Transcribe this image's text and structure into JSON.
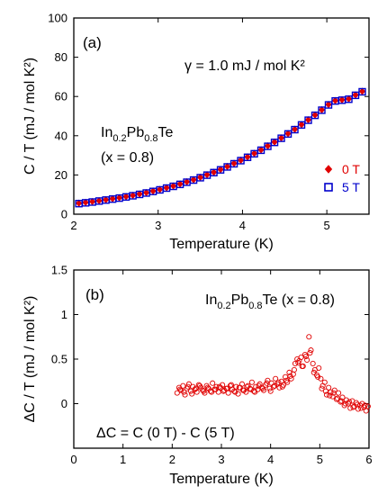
{
  "chart_data": [
    {
      "panel": "(a)",
      "type": "scatter",
      "xlabel": "Temperature (K)",
      "ylabel": "C / T (mJ / mol K²)",
      "xlim": [
        2,
        5.5
      ],
      "ylim": [
        0,
        100
      ],
      "xticks": [
        2,
        3,
        4,
        5
      ],
      "yticks": [
        0,
        20,
        40,
        60,
        80,
        100
      ],
      "annotations": {
        "gamma": "γ = 1.0 mJ / mol K²",
        "compound": [
          "In",
          "0.2",
          "Pb",
          "0.8",
          "Te"
        ],
        "x_value": "(x = 0.8)"
      },
      "legend_position": "right",
      "series": [
        {
          "name": "0 T",
          "marker": "diamond",
          "color": "#e00000",
          "x": [
            2.06,
            2.14,
            2.22,
            2.3,
            2.38,
            2.46,
            2.54,
            2.62,
            2.7,
            2.78,
            2.86,
            2.94,
            3.02,
            3.1,
            3.18,
            3.26,
            3.34,
            3.42,
            3.5,
            3.58,
            3.66,
            3.74,
            3.82,
            3.9,
            3.98,
            4.06,
            4.14,
            4.22,
            4.3,
            4.38,
            4.46,
            4.54,
            4.62,
            4.7,
            4.78,
            4.86,
            4.94,
            5.02,
            5.1,
            5.18,
            5.26,
            5.34,
            5.42
          ],
          "y": [
            5.6,
            6.0,
            6.4,
            6.9,
            7.4,
            7.9,
            8.4,
            9.0,
            9.6,
            10.3,
            11.0,
            11.8,
            12.6,
            13.5,
            14.4,
            15.4,
            16.5,
            17.6,
            18.8,
            20.1,
            21.4,
            22.8,
            24.3,
            25.9,
            27.5,
            29.2,
            31.0,
            32.8,
            34.8,
            36.8,
            38.9,
            41.1,
            43.3,
            45.7,
            48.1,
            50.6,
            53.2,
            55.9,
            57.9,
            58.3,
            58.8,
            60.8,
            62.6
          ]
        },
        {
          "name": "5 T",
          "marker": "open-square",
          "color": "#0000cc",
          "x": [
            2.06,
            2.14,
            2.22,
            2.3,
            2.38,
            2.46,
            2.54,
            2.62,
            2.7,
            2.78,
            2.86,
            2.94,
            3.02,
            3.1,
            3.18,
            3.26,
            3.34,
            3.42,
            3.5,
            3.58,
            3.66,
            3.74,
            3.82,
            3.9,
            3.98,
            4.06,
            4.14,
            4.22,
            4.3,
            4.38,
            4.46,
            4.54,
            4.62,
            4.7,
            4.78,
            4.86,
            4.94,
            5.02,
            5.1,
            5.18,
            5.26,
            5.34,
            5.42
          ],
          "y": [
            5.4,
            5.8,
            6.2,
            6.7,
            7.2,
            7.7,
            8.2,
            8.8,
            9.4,
            10.1,
            10.8,
            11.6,
            12.4,
            13.3,
            14.2,
            15.2,
            16.3,
            17.4,
            18.6,
            19.9,
            21.2,
            22.6,
            24.1,
            25.7,
            27.3,
            29.0,
            30.8,
            32.6,
            34.6,
            36.6,
            38.7,
            40.9,
            43.1,
            45.5,
            47.9,
            50.4,
            53.0,
            55.7,
            57.7,
            58.1,
            58.6,
            60.6,
            62.4
          ]
        }
      ]
    },
    {
      "panel": "(b)",
      "type": "scatter",
      "xlabel": "Temperature (K)",
      "ylabel": "ΔC / T (mJ / mol K²)",
      "xlim": [
        0,
        6
      ],
      "ylim": [
        -0.5,
        1.5
      ],
      "xticks": [
        0,
        1,
        2,
        3,
        4,
        5,
        6
      ],
      "yticks": [
        0,
        0.5,
        1,
        1.5
      ],
      "ytick_labels": [
        "0",
        "0.5",
        "1",
        "1.5"
      ],
      "annotations": {
        "compound": [
          "In",
          "0.2",
          "Pb",
          "0.8",
          "Te (x = 0.8)"
        ],
        "formula": "ΔC = C (0 T) - C (5 T)"
      },
      "series": [
        {
          "marker": "open-circle",
          "color": "#e00000",
          "x": [
            2.1,
            2.14,
            2.18,
            2.22,
            2.26,
            2.3,
            2.34,
            2.38,
            2.42,
            2.46,
            2.5,
            2.54,
            2.58,
            2.62,
            2.66,
            2.7,
            2.74,
            2.78,
            2.82,
            2.86,
            2.9,
            2.94,
            2.98,
            3.02,
            3.06,
            3.1,
            3.14,
            3.18,
            3.22,
            3.26,
            3.3,
            3.34,
            3.38,
            3.42,
            3.46,
            3.5,
            3.54,
            3.58,
            3.62,
            3.66,
            3.7,
            3.74,
            3.78,
            3.82,
            3.86,
            3.9,
            3.94,
            3.98,
            4.02,
            4.06,
            4.1,
            4.14,
            4.18,
            4.22,
            4.26,
            4.3,
            4.34,
            4.38,
            4.42,
            4.46,
            4.5,
            4.54,
            4.58,
            4.62,
            4.66,
            4.7,
            4.74,
            4.78,
            4.82,
            4.86,
            4.9,
            4.94,
            4.98,
            5.02,
            5.06,
            5.1,
            5.14,
            5.18,
            5.22,
            5.26,
            5.3,
            5.34,
            5.38,
            5.42,
            5.46,
            5.5,
            5.54,
            5.58,
            5.62,
            5.66,
            5.7,
            5.74,
            5.78,
            5.82,
            5.86,
            5.9,
            5.94,
            5.98,
            2.16,
            2.24,
            2.32,
            2.4,
            2.48,
            2.56,
            2.64,
            2.72,
            2.8,
            2.88,
            2.96,
            3.04,
            3.12,
            3.2,
            3.28,
            3.36,
            3.44,
            3.52,
            3.6,
            3.68,
            3.76,
            3.84,
            3.92,
            4.0,
            4.08,
            4.16,
            4.24,
            4.32,
            4.4,
            4.48,
            4.56,
            4.64,
            4.72,
            4.8,
            4.88,
            4.96,
            5.04,
            5.12,
            5.2,
            5.28,
            5.36,
            5.44,
            5.52,
            5.6,
            5.68,
            5.76,
            5.84,
            5.92
          ],
          "y": [
            0.12,
            0.18,
            0.15,
            0.2,
            0.1,
            0.17,
            0.22,
            0.14,
            0.19,
            0.16,
            0.13,
            0.21,
            0.18,
            0.15,
            0.12,
            0.2,
            0.17,
            0.14,
            0.23,
            0.16,
            0.19,
            0.13,
            0.18,
            0.21,
            0.15,
            0.17,
            0.12,
            0.2,
            0.16,
            0.14,
            0.19,
            0.11,
            0.18,
            0.22,
            0.15,
            0.13,
            0.2,
            0.17,
            0.24,
            0.14,
            0.19,
            0.16,
            0.22,
            0.18,
            0.15,
            0.21,
            0.26,
            0.17,
            0.23,
            0.19,
            0.28,
            0.22,
            0.18,
            0.25,
            0.21,
            0.3,
            0.24,
            0.35,
            0.28,
            0.33,
            0.45,
            0.5,
            0.48,
            0.52,
            0.42,
            0.55,
            0.49,
            0.75,
            0.6,
            0.45,
            0.38,
            0.32,
            0.4,
            0.28,
            0.2,
            0.24,
            0.1,
            0.18,
            0.13,
            0.08,
            0.15,
            0.05,
            0.12,
            0.02,
            0.07,
            -0.02,
            0.04,
            0.0,
            -0.05,
            0.03,
            -0.03,
            0.01,
            -0.06,
            -0.02,
            0.0,
            -0.04,
            -0.08,
            -0.03,
            0.16,
            0.13,
            0.19,
            0.11,
            0.17,
            0.2,
            0.14,
            0.18,
            0.13,
            0.16,
            0.19,
            0.14,
            0.17,
            0.21,
            0.13,
            0.18,
            0.15,
            0.19,
            0.16,
            0.13,
            0.2,
            0.17,
            0.23,
            0.14,
            0.2,
            0.24,
            0.19,
            0.26,
            0.31,
            0.38,
            0.46,
            0.42,
            0.53,
            0.57,
            0.35,
            0.3,
            0.17,
            0.14,
            0.09,
            0.12,
            0.06,
            0.03,
            0.0,
            0.02,
            -0.04,
            -0.01,
            -0.05,
            -0.02
          ]
        }
      ]
    }
  ]
}
